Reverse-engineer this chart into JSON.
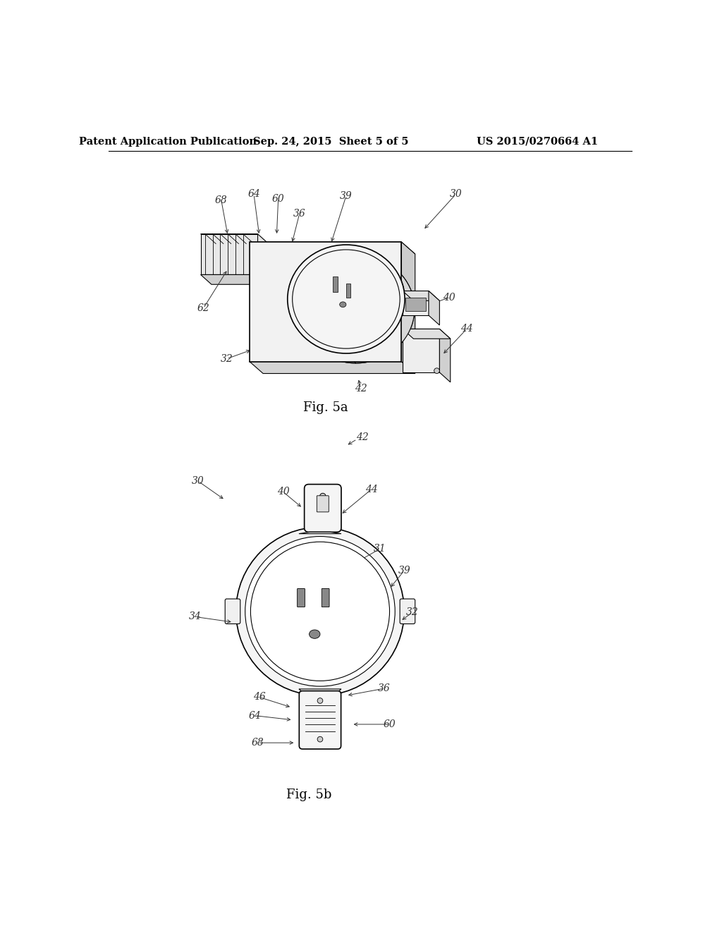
{
  "background_color": "#ffffff",
  "header_left": "Patent Application Publication",
  "header_center": "Sep. 24, 2015  Sheet 5 of 5",
  "header_right": "US 2015/0270664 A1",
  "fig5a_caption": "Fig. 5a",
  "fig5b_caption": "Fig. 5b",
  "line_color": "#000000",
  "label_color": "#444444",
  "header_fontsize": 10.5,
  "caption_fontsize": 13,
  "label_fontsize": 10
}
